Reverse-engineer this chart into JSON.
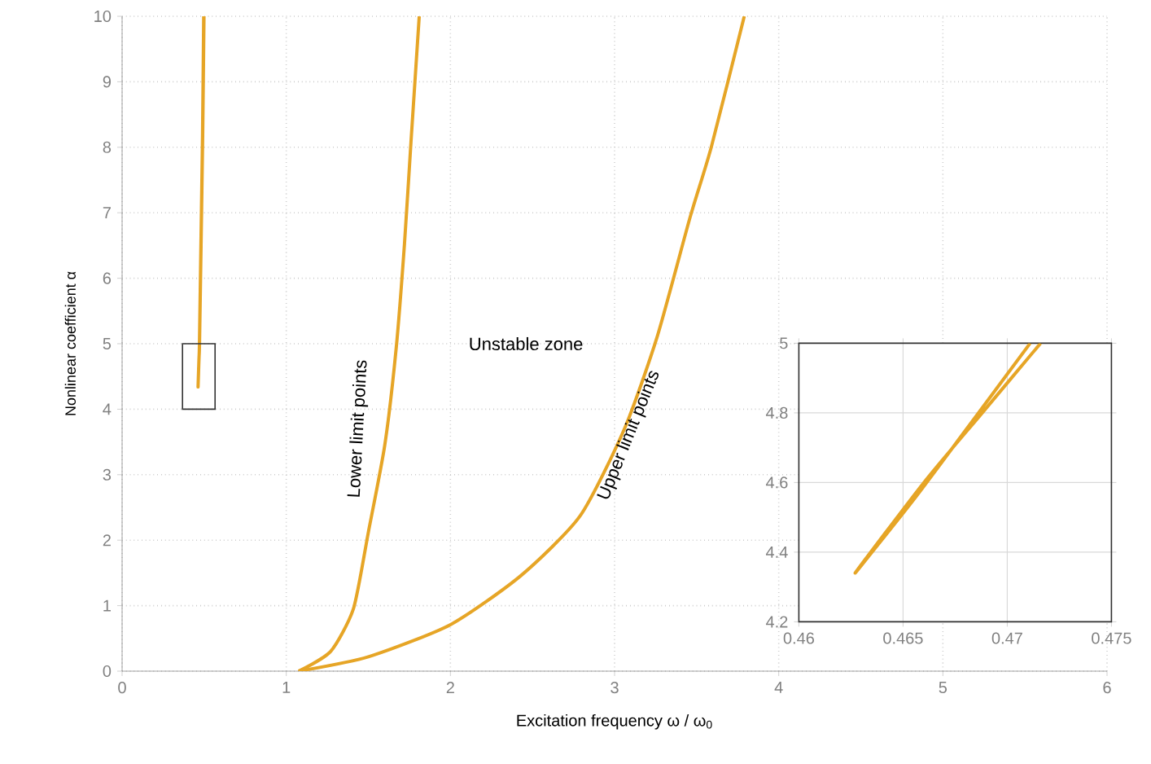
{
  "chart_data": [
    {
      "type": "line",
      "xlabel": "Excitation frequency ω / ω$_{0}$",
      "ylabel": "Nonlinear coefficient α",
      "xlim": [
        0,
        6
      ],
      "ylim": [
        0,
        10
      ],
      "xticks": [
        0,
        1,
        2,
        3,
        4,
        5,
        6
      ],
      "yticks": [
        0,
        1,
        2,
        3,
        4,
        5,
        6,
        7,
        8,
        9,
        10
      ],
      "grid": true,
      "annotations": [
        "Lower limit points",
        "Unstable zone",
        "Upper limit points"
      ],
      "series": [
        {
          "color": "#e6a526",
          "x": [
            0.497,
            0.49,
            0.48,
            0.4711,
            0.468,
            0.4655,
            0.4627,
            0.466,
            0.4688,
            0.4716,
            0.481,
            0.491,
            0.499
          ],
          "values": [
            10,
            8.2,
            6.5,
            5,
            4.75,
            4.55,
            4.34,
            4.6,
            4.8,
            5,
            6.5,
            8.2,
            10
          ]
        },
        {
          "color": "#e6a526",
          "x": [
            1.075,
            1.27,
            1.41,
            1.5,
            1.6,
            1.67,
            1.72,
            1.76,
            1.81
          ],
          "values": [
            0,
            0.3,
            0.96,
            2.12,
            3.45,
            4.94,
            6.52,
            8.09,
            10
          ]
        },
        {
          "color": "#e6a526",
          "x": [
            1.075,
            1.5,
            2.0,
            2.43,
            2.79,
            3.06,
            3.26,
            3.46,
            3.59,
            3.79
          ],
          "values": [
            0,
            0.22,
            0.71,
            1.46,
            2.37,
            3.7,
            5.11,
            6.93,
            8.01,
            10
          ]
        }
      ]
    },
    {
      "type": "line",
      "xlim": [
        0.46,
        0.475
      ],
      "ylim": [
        4.2,
        5
      ],
      "xticks": [
        0.46,
        0.465,
        0.47,
        0.475
      ],
      "yticks": [
        4.2,
        4.4,
        4.6,
        4.8,
        5
      ],
      "grid": true,
      "series": [
        {
          "color": "#e6a526",
          "x": [
            0.4711,
            0.468,
            0.4655,
            0.4627,
            0.466,
            0.4688,
            0.4716
          ],
          "values": [
            5,
            4.75,
            4.55,
            4.34,
            4.6,
            4.8,
            5
          ]
        }
      ]
    }
  ]
}
